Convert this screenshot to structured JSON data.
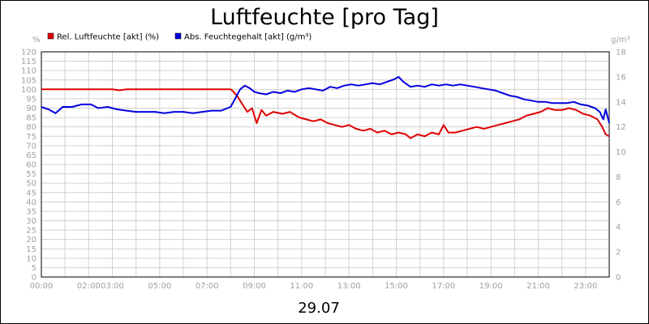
{
  "chart_data": {
    "type": "line",
    "title": "Luftfeuchte [pro Tag]",
    "date_label": "29.07",
    "left_axis": {
      "unit": "%",
      "ylim": [
        0,
        120
      ],
      "ticks": [
        "0",
        "5",
        "10",
        "15",
        "20",
        "25",
        "30",
        "35",
        "40",
        "45",
        "50",
        "55",
        "60",
        "65",
        "70",
        "75",
        "80",
        "85",
        "90",
        "95",
        "100",
        "105",
        "110",
        "115",
        "120"
      ]
    },
    "right_axis": {
      "unit": "g/m³",
      "ylim": [
        0,
        18
      ],
      "ticks": [
        "0",
        "2",
        "4",
        "6",
        "8",
        "10",
        "12",
        "14",
        "16",
        "18"
      ]
    },
    "x_axis": {
      "range_hours": [
        0,
        24
      ],
      "tick_labels": [
        {
          "hour": 0,
          "label": "00:00"
        },
        {
          "hour": 2,
          "label": "02:00"
        },
        {
          "hour": 3,
          "label": "03:00"
        },
        {
          "hour": 5,
          "label": "05:00"
        },
        {
          "hour": 7,
          "label": "07:00"
        },
        {
          "hour": 9,
          "label": "09:00"
        },
        {
          "hour": 11,
          "label": "11:00"
        },
        {
          "hour": 13,
          "label": "13:00"
        },
        {
          "hour": 15,
          "label": "15:00"
        },
        {
          "hour": 17,
          "label": "17:00"
        },
        {
          "hour": 19,
          "label": "19:00"
        },
        {
          "hour": 21,
          "label": "21:00"
        },
        {
          "hour": 23,
          "label": "23:00"
        }
      ],
      "grid_hours": [
        0,
        1,
        2,
        3,
        4,
        5,
        6,
        7,
        8,
        9,
        10,
        11,
        12,
        13,
        14,
        15,
        16,
        17,
        18,
        19,
        20,
        21,
        22,
        23,
        24
      ]
    },
    "grid": true,
    "legend_position": "top-left",
    "series": [
      {
        "name": "Rel. Luftfeuchte [akt] (%)",
        "color": "#e00000",
        "axis": "left",
        "points": [
          [
            0.0,
            100
          ],
          [
            1.0,
            100
          ],
          [
            2.0,
            100
          ],
          [
            3.0,
            100
          ],
          [
            3.3,
            99.5
          ],
          [
            3.6,
            100
          ],
          [
            5.0,
            100
          ],
          [
            6.0,
            100
          ],
          [
            7.0,
            100
          ],
          [
            8.0,
            100
          ],
          [
            8.1,
            99
          ],
          [
            8.3,
            96
          ],
          [
            8.5,
            92
          ],
          [
            8.7,
            88
          ],
          [
            8.9,
            90
          ],
          [
            9.1,
            82
          ],
          [
            9.3,
            89
          ],
          [
            9.5,
            86
          ],
          [
            9.8,
            88
          ],
          [
            10.2,
            87
          ],
          [
            10.5,
            88
          ],
          [
            10.9,
            85
          ],
          [
            11.2,
            84
          ],
          [
            11.5,
            83
          ],
          [
            11.8,
            84
          ],
          [
            12.1,
            82
          ],
          [
            12.4,
            81
          ],
          [
            12.7,
            80
          ],
          [
            13.0,
            81
          ],
          [
            13.3,
            79
          ],
          [
            13.6,
            78
          ],
          [
            13.9,
            79
          ],
          [
            14.2,
            77
          ],
          [
            14.5,
            78
          ],
          [
            14.8,
            76
          ],
          [
            15.1,
            77
          ],
          [
            15.4,
            76
          ],
          [
            15.6,
            74
          ],
          [
            15.9,
            76
          ],
          [
            16.2,
            75
          ],
          [
            16.5,
            77
          ],
          [
            16.8,
            76
          ],
          [
            17.0,
            81
          ],
          [
            17.2,
            77
          ],
          [
            17.5,
            77
          ],
          [
            17.8,
            78
          ],
          [
            18.1,
            79
          ],
          [
            18.4,
            80
          ],
          [
            18.7,
            79
          ],
          [
            19.0,
            80
          ],
          [
            19.3,
            81
          ],
          [
            19.6,
            82
          ],
          [
            19.9,
            83
          ],
          [
            20.2,
            84
          ],
          [
            20.5,
            86
          ],
          [
            20.8,
            87
          ],
          [
            21.1,
            88
          ],
          [
            21.4,
            90
          ],
          [
            21.7,
            89
          ],
          [
            22.0,
            89
          ],
          [
            22.3,
            90
          ],
          [
            22.6,
            89
          ],
          [
            22.9,
            87
          ],
          [
            23.2,
            86
          ],
          [
            23.5,
            84
          ],
          [
            23.7,
            80
          ],
          [
            23.85,
            76
          ],
          [
            24.0,
            75
          ]
        ]
      },
      {
        "name": "Abs. Feuchtegehalt [akt] (g/m³)",
        "color": "#0000e0",
        "axis": "right",
        "points": [
          [
            0.0,
            13.6
          ],
          [
            0.3,
            13.4
          ],
          [
            0.6,
            13.1
          ],
          [
            0.9,
            13.6
          ],
          [
            1.3,
            13.6
          ],
          [
            1.7,
            13.8
          ],
          [
            2.1,
            13.8
          ],
          [
            2.4,
            13.5
          ],
          [
            2.8,
            13.6
          ],
          [
            3.2,
            13.4
          ],
          [
            3.6,
            13.3
          ],
          [
            4.0,
            13.2
          ],
          [
            4.4,
            13.2
          ],
          [
            4.8,
            13.2
          ],
          [
            5.2,
            13.1
          ],
          [
            5.6,
            13.2
          ],
          [
            6.0,
            13.2
          ],
          [
            6.4,
            13.1
          ],
          [
            6.8,
            13.2
          ],
          [
            7.2,
            13.3
          ],
          [
            7.6,
            13.3
          ],
          [
            8.0,
            13.6
          ],
          [
            8.2,
            14.3
          ],
          [
            8.4,
            15.0
          ],
          [
            8.6,
            15.3
          ],
          [
            8.8,
            15.1
          ],
          [
            9.0,
            14.8
          ],
          [
            9.2,
            14.7
          ],
          [
            9.5,
            14.6
          ],
          [
            9.8,
            14.8
          ],
          [
            10.1,
            14.7
          ],
          [
            10.4,
            14.9
          ],
          [
            10.7,
            14.8
          ],
          [
            11.0,
            15.0
          ],
          [
            11.3,
            15.1
          ],
          [
            11.6,
            15.0
          ],
          [
            11.9,
            14.9
          ],
          [
            12.2,
            15.2
          ],
          [
            12.5,
            15.1
          ],
          [
            12.8,
            15.3
          ],
          [
            13.1,
            15.4
          ],
          [
            13.4,
            15.3
          ],
          [
            13.7,
            15.4
          ],
          [
            14.0,
            15.5
          ],
          [
            14.3,
            15.4
          ],
          [
            14.6,
            15.6
          ],
          [
            14.9,
            15.8
          ],
          [
            15.1,
            16.0
          ],
          [
            15.3,
            15.6
          ],
          [
            15.6,
            15.2
          ],
          [
            15.9,
            15.3
          ],
          [
            16.2,
            15.2
          ],
          [
            16.5,
            15.4
          ],
          [
            16.8,
            15.3
          ],
          [
            17.1,
            15.4
          ],
          [
            17.4,
            15.3
          ],
          [
            17.7,
            15.4
          ],
          [
            18.0,
            15.3
          ],
          [
            18.3,
            15.2
          ],
          [
            18.6,
            15.1
          ],
          [
            18.9,
            15.0
          ],
          [
            19.2,
            14.9
          ],
          [
            19.5,
            14.7
          ],
          [
            19.8,
            14.5
          ],
          [
            20.1,
            14.4
          ],
          [
            20.4,
            14.2
          ],
          [
            20.7,
            14.1
          ],
          [
            21.0,
            14.0
          ],
          [
            21.3,
            14.0
          ],
          [
            21.6,
            13.9
          ],
          [
            21.9,
            13.9
          ],
          [
            22.2,
            13.9
          ],
          [
            22.5,
            14.0
          ],
          [
            22.8,
            13.8
          ],
          [
            23.1,
            13.7
          ],
          [
            23.4,
            13.5
          ],
          [
            23.6,
            13.2
          ],
          [
            23.75,
            12.6
          ],
          [
            23.85,
            13.4
          ],
          [
            24.0,
            12.3
          ]
        ]
      }
    ]
  }
}
